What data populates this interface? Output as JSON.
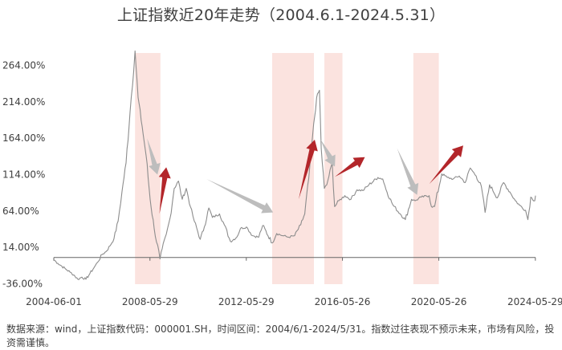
{
  "title": "上证指数近20年走势（2004.6.1-2024.5.31）",
  "source_note": "数据来源：wind，上证指数代码：000001.SH，时间区间：2004/6/1-2024/5/31。指数过往表现不预示未来，市场有风险，投资需谨慎。",
  "colors": {
    "line": "#8c8c8c",
    "band": "#fbe3df",
    "up_arrow": "#b3262a",
    "down_arrow": "#bdbdbd",
    "axis": "#666666",
    "text": "#404040"
  },
  "chart_data": {
    "type": "line",
    "title": "上证指数近20年走势（2004.6.1-2024.5.31）",
    "xlabel": "",
    "ylabel": "",
    "xlim": [
      "2004-06-01",
      "2024-05-31"
    ],
    "ylim": [
      -40,
      290
    ],
    "x_ticks": [
      "2004-06-01",
      "2008-05-29",
      "2012-05-29",
      "2016-05-26",
      "2020-05-26",
      "2024-05-29"
    ],
    "y_ticks": [
      -36,
      14,
      64,
      114,
      164,
      214,
      264
    ],
    "y_tick_labels": [
      "-36.00%",
      "14.00%",
      "64.00%",
      "114.00%",
      "164.00%",
      "214.00%",
      "264.00%"
    ],
    "grid": false,
    "legend": "none",
    "series": [
      {
        "unit": "%",
        "x": [
          "2004-06-01",
          "2004-08-01",
          "2004-10-01",
          "2004-12-01",
          "2005-02-01",
          "2005-04-01",
          "2005-06-01",
          "2005-08-01",
          "2005-10-01",
          "2005-12-01",
          "2006-02-01",
          "2006-04-01",
          "2006-06-01",
          "2006-08-01",
          "2006-10-01",
          "2006-12-01",
          "2007-02-01",
          "2007-04-01",
          "2007-06-01",
          "2007-08-01",
          "2007-10-16",
          "2007-12-01",
          "2008-02-01",
          "2008-04-01",
          "2008-06-01",
          "2008-08-01",
          "2008-10-28",
          "2008-12-01",
          "2009-02-01",
          "2009-04-01",
          "2009-06-01",
          "2009-08-04",
          "2009-10-01",
          "2009-12-01",
          "2010-02-01",
          "2010-04-01",
          "2010-07-01",
          "2010-09-01",
          "2010-11-08",
          "2011-01-01",
          "2011-04-18",
          "2011-07-01",
          "2011-10-01",
          "2012-01-06",
          "2012-03-01",
          "2012-06-01",
          "2012-09-01",
          "2012-12-04",
          "2013-02-01",
          "2013-06-27",
          "2013-09-01",
          "2013-12-01",
          "2014-03-01",
          "2014-06-01",
          "2014-09-01",
          "2014-11-01",
          "2014-12-31",
          "2015-03-01",
          "2015-04-30",
          "2015-06-12",
          "2015-07-09",
          "2015-08-26",
          "2015-10-01",
          "2015-12-23",
          "2016-01-28",
          "2016-04-01",
          "2016-07-01",
          "2016-10-01",
          "2017-01-01",
          "2017-04-01",
          "2017-07-01",
          "2017-11-14",
          "2018-01-26",
          "2018-04-01",
          "2018-07-01",
          "2018-10-19",
          "2019-01-04",
          "2019-04-08",
          "2019-06-01",
          "2019-09-01",
          "2019-12-31",
          "2020-02-03",
          "2020-03-23",
          "2020-07-09",
          "2020-10-01",
          "2021-01-01",
          "2021-04-01",
          "2021-07-01",
          "2021-09-14",
          "2021-12-13",
          "2022-03-01",
          "2022-04-27",
          "2022-07-05",
          "2022-10-31",
          "2023-02-01",
          "2023-05-09",
          "2023-08-01",
          "2023-10-01",
          "2024-01-01",
          "2024-02-05",
          "2024-03-20",
          "2024-05-20",
          "2024-05-31"
        ],
        "values": [
          -3,
          -8,
          -12,
          -16,
          -20,
          -24,
          -30,
          -27,
          -30,
          -22,
          -14,
          -6,
          4,
          8,
          16,
          26,
          50,
          90,
          130,
          200,
          284,
          220,
          180,
          140,
          80,
          40,
          -2,
          12,
          32,
          55,
          95,
          105,
          80,
          95,
          70,
          50,
          25,
          42,
          68,
          55,
          60,
          45,
          22,
          28,
          40,
          42,
          30,
          28,
          44,
          20,
          33,
          30,
          28,
          30,
          45,
          60,
          108,
          168,
          220,
          230,
          150,
          95,
          100,
          130,
          70,
          78,
          85,
          80,
          93,
          92,
          100,
          110,
          108,
          90,
          72,
          60,
          52,
          80,
          78,
          83,
          85,
          70,
          70,
          115,
          110,
          108,
          112,
          103,
          123,
          112,
          98,
          62,
          100,
          82,
          103,
          90,
          78,
          72,
          65,
          52,
          83,
          78,
          85
        ]
      }
    ],
    "shaded_periods": [
      [
        "2007-10-16",
        "2008-11-04"
      ],
      [
        "2013-06-25",
        "2015-03-20"
      ],
      [
        "2015-08-26",
        "2016-05-26"
      ],
      [
        "2019-05-06",
        "2020-05-26"
      ]
    ],
    "annotations": [
      {
        "type": "down-arrow",
        "from": [
          "2008-04-15",
          164
        ],
        "to": [
          "2008-09-20",
          114
        ]
      },
      {
        "type": "up-arrow",
        "from": [
          "2008-10-20",
          60
        ],
        "to": [
          "2009-02-01",
          124
        ]
      },
      {
        "type": "down-arrow",
        "from": [
          "2010-10-01",
          108
        ],
        "to": [
          "2013-07-10",
          62
        ]
      },
      {
        "type": "up-arrow",
        "from": [
          "2014-08-01",
          80
        ],
        "to": [
          "2015-04-01",
          162
        ]
      },
      {
        "type": "down-arrow",
        "from": [
          "2015-07-01",
          162
        ],
        "to": [
          "2016-02-01",
          125
        ]
      },
      {
        "type": "up-arrow",
        "from": [
          "2016-02-01",
          111
        ],
        "to": [
          "2017-05-01",
          138
        ]
      },
      {
        "type": "down-arrow",
        "from": [
          "2018-09-01",
          150
        ],
        "to": [
          "2019-07-01",
          86
        ]
      },
      {
        "type": "up-arrow",
        "from": [
          "2020-01-01",
          101
        ],
        "to": [
          "2021-06-01",
          154
        ]
      }
    ]
  }
}
